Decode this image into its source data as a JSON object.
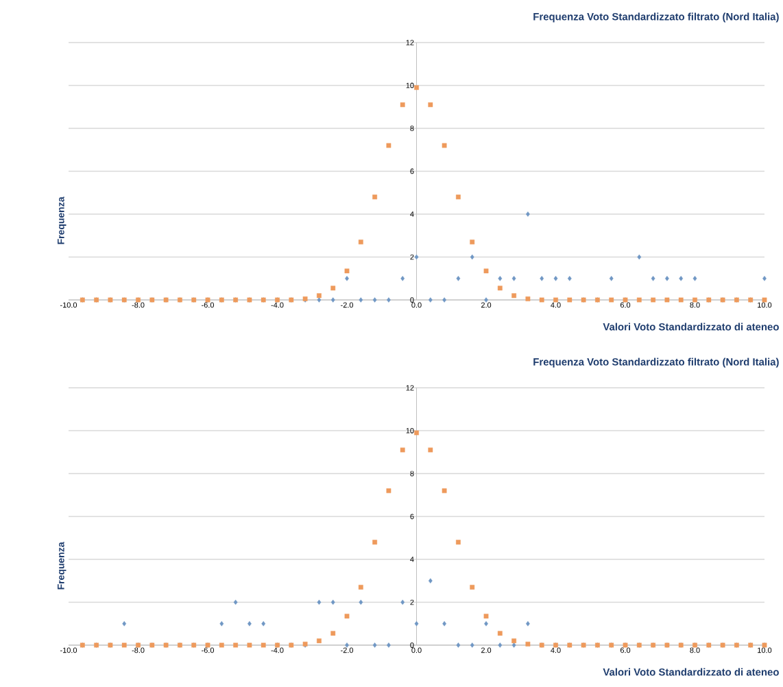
{
  "chart_data": [
    {
      "type": "scatter",
      "title": "Frequenza Voto Standardizzato filtrato (Nord Italia)",
      "xlabel": "Valori Voto Standardizzato di ateneo",
      "ylabel": "Frequenza",
      "x": [
        -9.6,
        -9.2,
        -8.8,
        -8.4,
        -8.0,
        -7.6,
        -7.2,
        -6.8,
        -6.4,
        -6.0,
        -5.6,
        -5.2,
        -4.8,
        -4.4,
        -4.0,
        -3.6,
        -3.2,
        -2.8,
        -2.4,
        -2.0,
        -1.6,
        -1.2,
        -0.8,
        -0.4,
        0.0,
        0.4,
        0.8,
        1.2,
        1.6,
        2.0,
        2.4,
        2.8,
        3.2,
        3.6,
        4.0,
        4.4,
        4.8,
        5.2,
        5.6,
        6.0,
        6.4,
        6.8,
        7.2,
        7.6,
        8.0,
        8.4,
        8.8,
        9.2,
        9.6,
        10.0
      ],
      "series": [
        {
          "color": "#7097c4",
          "marker": "diamond",
          "values": [
            0,
            0,
            0,
            0,
            0,
            0,
            0,
            0,
            0,
            0,
            0,
            0,
            0,
            0,
            0,
            0,
            0,
            0,
            0,
            1,
            0,
            0,
            0,
            1,
            2,
            0,
            0,
            1,
            2,
            0,
            1,
            1,
            4,
            1,
            1,
            1,
            0,
            0,
            1,
            0,
            2,
            1,
            1,
            1,
            1,
            0,
            0,
            0,
            0,
            1
          ]
        },
        {
          "color": "#ee9a5c",
          "marker": "square",
          "values": [
            0,
            0,
            0,
            0,
            0,
            0,
            0,
            0,
            0,
            0,
            0,
            0,
            0,
            0,
            0,
            0,
            0.05,
            0.2,
            0.55,
            1.35,
            2.7,
            4.8,
            7.2,
            9.1,
            9.9,
            9.1,
            7.2,
            4.8,
            2.7,
            1.35,
            0.55,
            0.2,
            0.05,
            0,
            0,
            0,
            0,
            0,
            0,
            0,
            0,
            0,
            0,
            0,
            0,
            0,
            0,
            0,
            0,
            0
          ]
        }
      ],
      "xlim": [
        -10,
        10
      ],
      "ylim": [
        0,
        12
      ],
      "xticks": [
        {
          "value": -10,
          "label": "-10.0"
        },
        {
          "value": -8,
          "label": "-8.0"
        },
        {
          "value": -6,
          "label": "-6.0"
        },
        {
          "value": -4,
          "label": "-4.0"
        },
        {
          "value": -2,
          "label": "-2.0"
        },
        {
          "value": 0,
          "label": "0.0"
        },
        {
          "value": 2,
          "label": "2.0"
        },
        {
          "value": 4,
          "label": "4.0"
        },
        {
          "value": 6,
          "label": "6.0"
        },
        {
          "value": 8,
          "label": "8.0"
        },
        {
          "value": 10,
          "label": "10.0"
        }
      ],
      "yticks": [
        0,
        2,
        4,
        6,
        8,
        10,
        12
      ],
      "grid": "y",
      "legend": false
    },
    {
      "type": "scatter",
      "title": "Frequenza Voto Standardizzato filtrato (Nord Italia)",
      "xlabel": "Valori Voto Standardizzato di ateneo",
      "ylabel": "Frequenza",
      "x": [
        -9.6,
        -9.2,
        -8.8,
        -8.4,
        -8.0,
        -7.6,
        -7.2,
        -6.8,
        -6.4,
        -6.0,
        -5.6,
        -5.2,
        -4.8,
        -4.4,
        -4.0,
        -3.6,
        -3.2,
        -2.8,
        -2.4,
        -2.0,
        -1.6,
        -1.2,
        -0.8,
        -0.4,
        0.0,
        0.4,
        0.8,
        1.2,
        1.6,
        2.0,
        2.4,
        2.8,
        3.2,
        3.6,
        4.0,
        4.4,
        4.8,
        5.2,
        5.6,
        6.0,
        6.4,
        6.8,
        7.2,
        7.6,
        8.0,
        8.4,
        8.8,
        9.2,
        9.6,
        10.0
      ],
      "series": [
        {
          "color": "#7097c4",
          "marker": "diamond",
          "values": [
            0,
            0,
            0,
            1,
            0,
            0,
            0,
            0,
            0,
            0,
            1,
            2,
            1,
            1,
            0,
            0,
            0,
            2,
            2,
            0,
            2,
            0,
            0,
            2,
            1,
            3,
            1,
            0,
            0,
            1,
            0,
            0,
            1,
            0,
            0,
            0,
            0,
            0,
            0,
            0,
            0,
            0,
            0,
            0,
            0,
            0,
            0,
            0,
            0,
            0
          ]
        },
        {
          "color": "#ee9a5c",
          "marker": "square",
          "values": [
            0,
            0,
            0,
            0,
            0,
            0,
            0,
            0,
            0,
            0,
            0,
            0,
            0,
            0,
            0,
            0,
            0.05,
            0.2,
            0.55,
            1.35,
            2.7,
            4.8,
            7.2,
            9.1,
            9.9,
            9.1,
            7.2,
            4.8,
            2.7,
            1.35,
            0.55,
            0.2,
            0.05,
            0,
            0,
            0,
            0,
            0,
            0,
            0,
            0,
            0,
            0,
            0,
            0,
            0,
            0,
            0,
            0,
            0
          ]
        }
      ],
      "xlim": [
        -10,
        10
      ],
      "ylim": [
        0,
        12
      ],
      "xticks": [
        {
          "value": -10,
          "label": "-10.0"
        },
        {
          "value": -8,
          "label": "-8.0"
        },
        {
          "value": -6,
          "label": "-6.0"
        },
        {
          "value": -4,
          "label": "-4.0"
        },
        {
          "value": -2,
          "label": "-2.0"
        },
        {
          "value": 0,
          "label": "0.0"
        },
        {
          "value": 2,
          "label": "2.0"
        },
        {
          "value": 4,
          "label": "4.0"
        },
        {
          "value": 6,
          "label": "6.0"
        },
        {
          "value": 8,
          "label": "8.0"
        },
        {
          "value": 10,
          "label": "10.0"
        }
      ],
      "yticks": [
        0,
        2,
        4,
        6,
        8,
        10,
        12
      ],
      "grid": "y",
      "legend": false
    }
  ]
}
